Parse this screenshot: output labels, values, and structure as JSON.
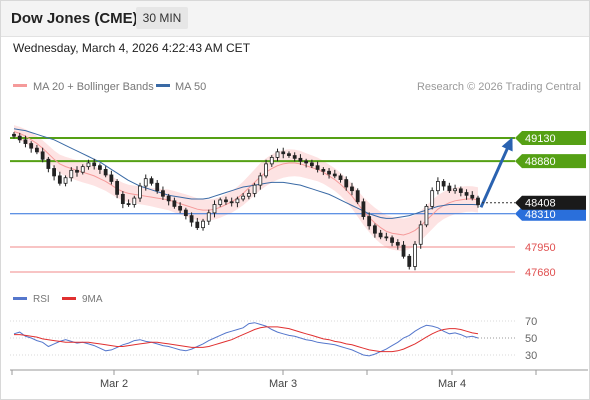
{
  "header": {
    "title": "Dow Jones (CME)",
    "timeframe": "30 MIN"
  },
  "timestamp": "Wednesday, March 4, 2026 4:22:43 AM CET",
  "legend": {
    "ma20": {
      "label": "MA 20 + Bollinger Bands",
      "color": "#f59a9a"
    },
    "ma50": {
      "label": "MA 50",
      "color": "#3a6aa5"
    },
    "credit": "Research © 2026 Trading Central"
  },
  "rsi_legend": {
    "rsi": {
      "label": "RSI",
      "color": "#5577cc"
    },
    "ma9": {
      "label": "9MA",
      "color": "#e03030"
    }
  },
  "chart_data": [
    {
      "type": "candlestick",
      "title": "Dow Jones (CME)",
      "timeframe": "30 MIN",
      "ylim": [
        47600,
        49400
      ],
      "last_price": {
        "label": "48408",
        "value": 48408
      },
      "levels": [
        {
          "label": "49130",
          "value": 49130,
          "kind": "resistance",
          "color": "#55a014"
        },
        {
          "label": "48880",
          "value": 48880,
          "kind": "resistance",
          "color": "#55a014"
        },
        {
          "label": "48310",
          "value": 48310,
          "kind": "pivot",
          "color": "#2a6fdb"
        },
        {
          "label": "47950",
          "value": 47950,
          "kind": "support",
          "color": "#f08a8a"
        },
        {
          "label": "47680",
          "value": 47680,
          "kind": "support",
          "color": "#f08a8a"
        }
      ],
      "x_ticks": [
        "Mar 2",
        "Mar 3",
        "Mar 4"
      ],
      "closes": [
        49150,
        49110,
        49070,
        49020,
        48980,
        48900,
        48800,
        48720,
        48640,
        48700,
        48780,
        48760,
        48820,
        48860,
        48830,
        48790,
        48730,
        48660,
        48520,
        48420,
        48410,
        48480,
        48610,
        48690,
        48640,
        48560,
        48500,
        48450,
        48390,
        48350,
        48290,
        48220,
        48160,
        48230,
        48320,
        48410,
        48460,
        48440,
        48430,
        48470,
        48500,
        48530,
        48620,
        48720,
        48850,
        48920,
        48980,
        48960,
        48940,
        48910,
        48880,
        48860,
        48830,
        48790,
        48770,
        48740,
        48720,
        48680,
        48600,
        48560,
        48440,
        48280,
        48180,
        48100,
        48060,
        48050,
        48000,
        47970,
        47850,
        47740,
        47980,
        48190,
        48390,
        48560,
        48660,
        48610,
        48560,
        48580,
        48540,
        48510,
        48480,
        48408
      ],
      "ma20": [
        49200,
        49180,
        49150,
        49110,
        49070,
        49020,
        48960,
        48900,
        48850,
        48820,
        48800,
        48780,
        48760,
        48740,
        48720,
        48690,
        48660,
        48620,
        48580,
        48550,
        48530,
        48520,
        48510,
        48500,
        48490,
        48480,
        48470,
        48460,
        48440,
        48420,
        48400,
        48380,
        48360,
        48350,
        48350,
        48360,
        48380,
        48410,
        48440,
        48480,
        48530,
        48590,
        48650,
        48710,
        48760,
        48800,
        48830,
        48850,
        48860,
        48860,
        48850,
        48830,
        48810,
        48790,
        48760,
        48720,
        48680,
        48630,
        48570,
        48500,
        48420,
        48340,
        48270,
        48210,
        48160,
        48120,
        48100,
        48090,
        48080,
        48100,
        48130,
        48180,
        48240,
        48300,
        48360,
        48400,
        48430,
        48450,
        48460,
        48470,
        48470,
        48460
      ],
      "ma50": [
        49230,
        49220,
        49210,
        49190,
        49170,
        49150,
        49130,
        49110,
        49080,
        49050,
        49020,
        48990,
        48960,
        48930,
        48900,
        48870,
        48830,
        48790,
        48750,
        48710,
        48670,
        48640,
        48610,
        48590,
        48570,
        48550,
        48530,
        48510,
        48500,
        48490,
        48480,
        48470,
        48470,
        48470,
        48480,
        48500,
        48520,
        48540,
        48560,
        48580,
        48600,
        48610,
        48620,
        48630,
        48640,
        48650,
        48650,
        48650,
        48640,
        48630,
        48620,
        48600,
        48580,
        48560,
        48540,
        48520,
        48490,
        48460,
        48430,
        48400,
        48370,
        48340,
        48310,
        48290,
        48270,
        48260,
        48260,
        48270,
        48280,
        48290,
        48310,
        48330,
        48350,
        48370,
        48390,
        48400,
        48410,
        48410,
        48410,
        48410,
        48410,
        48408
      ]
    },
    {
      "type": "line",
      "title": "RSI",
      "series": [
        {
          "name": "RSI",
          "color": "#5577cc"
        },
        {
          "name": "9MA",
          "color": "#e03030"
        }
      ],
      "ylim": [
        20,
        80
      ],
      "y_ticks": [
        "70",
        "50",
        "30"
      ],
      "rsi": [
        55,
        57,
        52,
        50,
        47,
        45,
        40,
        43,
        46,
        48,
        46,
        44,
        45,
        43,
        41,
        38,
        35,
        36,
        39,
        42,
        44,
        47,
        48,
        46,
        45,
        43,
        41,
        40,
        38,
        36,
        35,
        37,
        40,
        43,
        47,
        50,
        53,
        56,
        58,
        60,
        62,
        67,
        68,
        66,
        64,
        60,
        57,
        55,
        53,
        52,
        50,
        48,
        47,
        45,
        44,
        43,
        42,
        40,
        38,
        36,
        33,
        30,
        29,
        31,
        34,
        37,
        41,
        45,
        50,
        53,
        58,
        62,
        65,
        64,
        62,
        58,
        55,
        56,
        54,
        51,
        52,
        50
      ],
      "ma9": [
        54,
        54,
        53,
        52,
        51,
        49,
        48,
        47,
        46,
        45,
        45,
        45,
        45,
        45,
        44,
        43,
        42,
        41,
        40,
        40,
        41,
        42,
        43,
        44,
        45,
        45,
        44,
        43,
        42,
        41,
        40,
        39,
        39,
        39,
        40,
        42,
        44,
        46,
        48,
        51,
        54,
        57,
        60,
        62,
        63,
        63,
        63,
        62,
        61,
        59,
        57,
        55,
        53,
        51,
        49,
        48,
        46,
        45,
        43,
        42,
        40,
        38,
        36,
        35,
        34,
        34,
        34,
        35,
        37,
        40,
        43,
        47,
        51,
        55,
        58,
        60,
        61,
        61,
        60,
        58,
        56,
        55
      ]
    }
  ]
}
